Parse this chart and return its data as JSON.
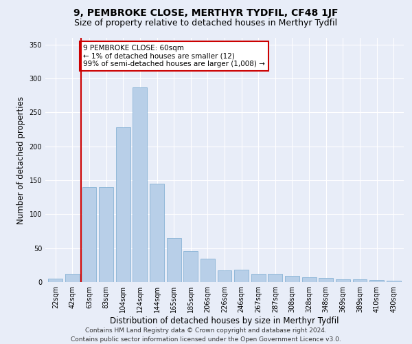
{
  "title": "9, PEMBROKE CLOSE, MERTHYR TYDFIL, CF48 1JF",
  "subtitle": "Size of property relative to detached houses in Merthyr Tydfil",
  "xlabel": "Distribution of detached houses by size in Merthyr Tydfil",
  "ylabel": "Number of detached properties",
  "categories": [
    "22sqm",
    "42sqm",
    "63sqm",
    "83sqm",
    "104sqm",
    "124sqm",
    "144sqm",
    "165sqm",
    "185sqm",
    "206sqm",
    "226sqm",
    "246sqm",
    "267sqm",
    "287sqm",
    "308sqm",
    "328sqm",
    "348sqm",
    "369sqm",
    "389sqm",
    "410sqm",
    "430sqm"
  ],
  "values": [
    5,
    12,
    140,
    140,
    228,
    287,
    145,
    65,
    46,
    34,
    17,
    18,
    12,
    12,
    9,
    7,
    6,
    4,
    4,
    3,
    2
  ],
  "bar_color": "#b8cfe8",
  "bar_edge_color": "#7aaad0",
  "vline_x": 1.5,
  "vline_color": "#cc0000",
  "annotation_text": "9 PEMBROKE CLOSE: 60sqm\n← 1% of detached houses are smaller (12)\n99% of semi-detached houses are larger (1,008) →",
  "annotation_box_color": "#ffffff",
  "annotation_box_edge": "#cc0000",
  "ylim": [
    0,
    360
  ],
  "yticks": [
    0,
    50,
    100,
    150,
    200,
    250,
    300,
    350
  ],
  "bg_color": "#e8edf8",
  "plot_bg_color": "#e8edf8",
  "footer": "Contains HM Land Registry data © Crown copyright and database right 2024.\nContains public sector information licensed under the Open Government Licence v3.0.",
  "title_fontsize": 10,
  "subtitle_fontsize": 9,
  "xlabel_fontsize": 8.5,
  "ylabel_fontsize": 8.5,
  "tick_fontsize": 7,
  "footer_fontsize": 6.5,
  "annot_fontsize": 7.5
}
